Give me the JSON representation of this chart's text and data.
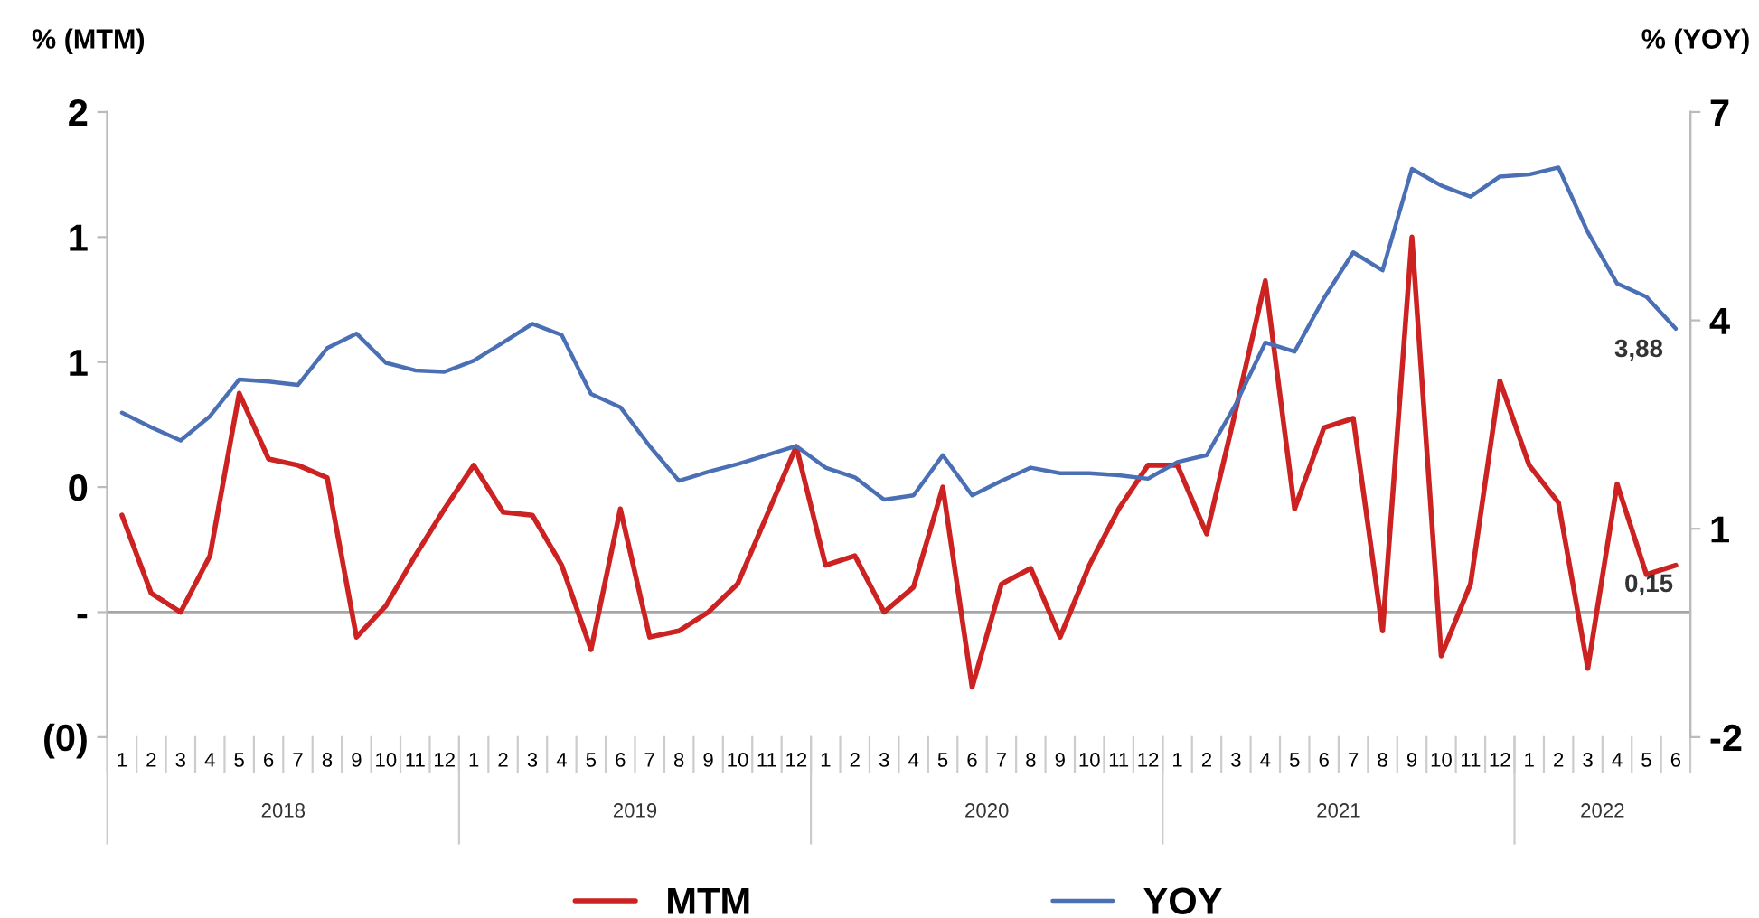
{
  "chart_data": {
    "type": "line",
    "ylabel": "% (MTM)",
    "y2label": "% (YOY)",
    "categories": [
      "1",
      "2",
      "3",
      "4",
      "5",
      "6",
      "7",
      "8",
      "9",
      "10",
      "11",
      "12",
      "1",
      "2",
      "3",
      "4",
      "5",
      "6",
      "7",
      "8",
      "9",
      "10",
      "11",
      "12",
      "1",
      "2",
      "3",
      "4",
      "5",
      "6",
      "7",
      "8",
      "9",
      "10",
      "11",
      "12",
      "1",
      "2",
      "3",
      "4",
      "5",
      "6",
      "7",
      "8",
      "9",
      "10",
      "11",
      "12",
      "1",
      "2",
      "3",
      "4",
      "5",
      "6"
    ],
    "annotations": [
      "2018",
      "2019",
      "2020",
      "2021",
      "2022"
    ],
    "series": [
      {
        "name": "MTM",
        "color": "#cc2222",
        "values": [
          0.31,
          0.06,
          0.0,
          0.18,
          0.7,
          0.49,
          0.47,
          0.43,
          -0.08,
          0.02,
          0.18,
          0.33,
          0.47,
          0.32,
          0.31,
          0.15,
          -0.12,
          0.33,
          -0.08,
          -0.06,
          0.0,
          0.09,
          0.31,
          0.53,
          0.15,
          0.18,
          0.0,
          0.08,
          0.4,
          -0.24,
          0.09,
          0.14,
          -0.08,
          0.15,
          0.33,
          0.47,
          0.47,
          0.25,
          0.65,
          1.06,
          0.33,
          0.59,
          0.62,
          -0.06,
          1.2,
          -0.14,
          0.09,
          0.74,
          0.47,
          0.35,
          -0.18,
          0.41,
          0.12,
          0.15
        ],
        "value_labels": [
          null,
          null,
          null,
          null,
          null,
          null,
          null,
          null,
          null,
          null,
          null,
          null,
          null,
          null,
          null,
          null,
          null,
          null,
          null,
          null,
          null,
          null,
          null,
          null,
          null,
          null,
          null,
          null,
          null,
          null,
          null,
          null,
          null,
          null,
          null,
          null,
          null,
          null,
          null,
          null,
          null,
          null,
          null,
          null,
          null,
          null,
          null,
          null,
          null,
          null,
          null,
          null,
          null,
          "0,15"
        ]
      },
      {
        "name": "YOY",
        "color": "#4a6fb5",
        "axis": "y2",
        "values": [
          2.67,
          2.46,
          2.27,
          2.62,
          3.15,
          3.12,
          3.07,
          3.6,
          3.81,
          3.39,
          3.28,
          3.26,
          3.42,
          3.68,
          3.95,
          3.79,
          2.94,
          2.75,
          2.19,
          1.69,
          1.82,
          1.93,
          2.06,
          2.19,
          1.88,
          1.74,
          1.42,
          1.48,
          2.06,
          1.48,
          1.69,
          1.88,
          1.8,
          1.8,
          1.77,
          1.72,
          1.96,
          2.06,
          2.8,
          3.68,
          3.55,
          4.32,
          4.98,
          4.72,
          6.18,
          5.94,
          5.78,
          6.07,
          6.1,
          6.2,
          5.27,
          4.53,
          4.34,
          3.88
        ],
        "value_labels": [
          null,
          null,
          null,
          null,
          null,
          null,
          null,
          null,
          null,
          null,
          null,
          null,
          null,
          null,
          null,
          null,
          null,
          null,
          null,
          null,
          null,
          null,
          null,
          null,
          null,
          null,
          null,
          null,
          null,
          null,
          null,
          null,
          null,
          null,
          null,
          null,
          null,
          null,
          null,
          null,
          null,
          null,
          null,
          null,
          null,
          null,
          null,
          null,
          null,
          null,
          null,
          null,
          null,
          "3,88"
        ]
      }
    ],
    "ylim": [
      -0.4,
      1.6
    ],
    "yticks": [
      {
        "value": 1.6,
        "label": "2"
      },
      {
        "value": 1.2,
        "label": "1"
      },
      {
        "value": 0.8,
        "label": "1"
      },
      {
        "value": 0.4,
        "label": "0"
      },
      {
        "value": 0,
        "label": "-"
      },
      {
        "value": -0.4,
        "label": "(0)"
      }
    ],
    "y2lim": [
      -2,
      7
    ],
    "y2ticks": [
      7,
      4,
      1,
      -2
    ],
    "ref_lines": [
      {
        "axis": "y",
        "value": 0,
        "color": "#a6a6a6"
      }
    ],
    "grid": false,
    "legend": "bottom",
    "marker": "none",
    "line_style": "solid"
  }
}
